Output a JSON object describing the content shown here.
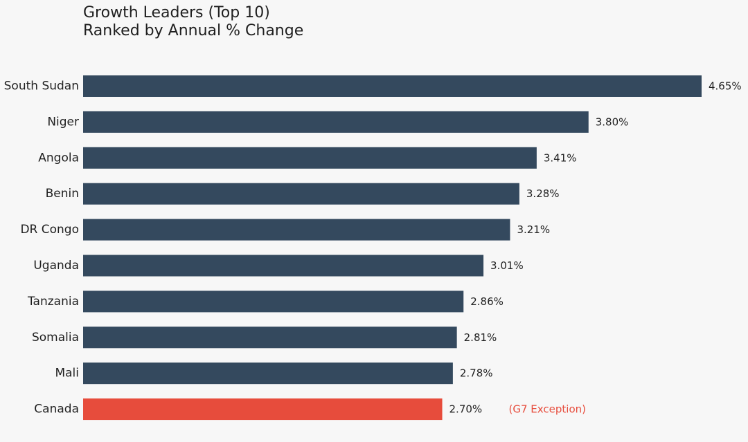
{
  "chart_data": {
    "type": "bar",
    "orientation": "horizontal",
    "title": "Growth Leaders (Top 10)",
    "subtitle": "Ranked by Annual % Change",
    "xlabel": "",
    "ylabel": "",
    "xlim": [
      0,
      4.65
    ],
    "grid": false,
    "legend": "none",
    "categories": [
      "South Sudan",
      "Niger",
      "Angola",
      "Benin",
      "DR Congo",
      "Uganda",
      "Tanzania",
      "Somalia",
      "Mali",
      "Canada"
    ],
    "values": [
      4.65,
      3.8,
      3.41,
      3.28,
      3.21,
      3.01,
      2.86,
      2.81,
      2.78,
      2.7
    ],
    "value_labels": [
      "4.65%",
      "3.80%",
      "3.41%",
      "3.28%",
      "3.21%",
      "3.01%",
      "2.86%",
      "2.81%",
      "2.78%",
      "2.70%"
    ],
    "bar_colors": [
      "#34495e",
      "#34495e",
      "#34495e",
      "#34495e",
      "#34495e",
      "#34495e",
      "#34495e",
      "#34495e",
      "#34495e",
      "#e74c3c"
    ],
    "annotations": [
      {
        "category": "Canada",
        "text": "(G7 Exception)",
        "color": "#e74c3c"
      }
    ]
  }
}
